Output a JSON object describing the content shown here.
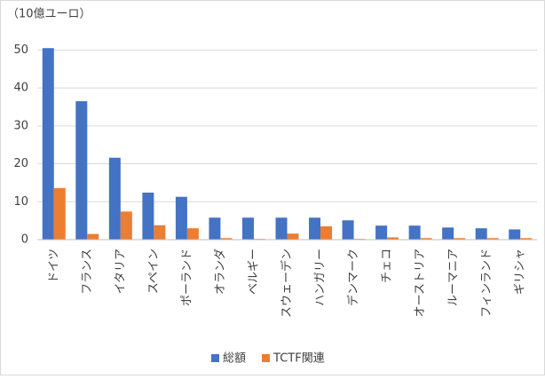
{
  "chart_data": {
    "type": "bar",
    "y_axis_label": "（10億ユーロ）",
    "categories": [
      "ドイツ",
      "フランス",
      "イタリア",
      "スペイン",
      "ポーランド",
      "オランダ",
      "ベルギー",
      "スウェーデン",
      "ハンガリー",
      "デンマーク",
      "チェコ",
      "オーストリア",
      "ルーマニア",
      "フィンランド",
      "ギリシャ"
    ],
    "series": [
      {
        "name": "総額",
        "color": "#4472c4",
        "values": [
          50.5,
          36.5,
          21.6,
          12.4,
          11.3,
          5.8,
          5.8,
          5.8,
          5.8,
          5.1,
          3.7,
          3.7,
          3.2,
          3.0,
          2.7
        ]
      },
      {
        "name": "TCTF関連",
        "color": "#ed7d31",
        "values": [
          13.6,
          1.5,
          7.4,
          3.8,
          3.0,
          0.4,
          0.2,
          1.6,
          3.5,
          0.2,
          0.6,
          0.4,
          0.4,
          0.4,
          0.4
        ]
      }
    ],
    "ylim": [
      0,
      55
    ],
    "yticks": [
      0,
      10,
      20,
      30,
      40,
      50
    ],
    "grid": true,
    "legend": "bottom"
  }
}
